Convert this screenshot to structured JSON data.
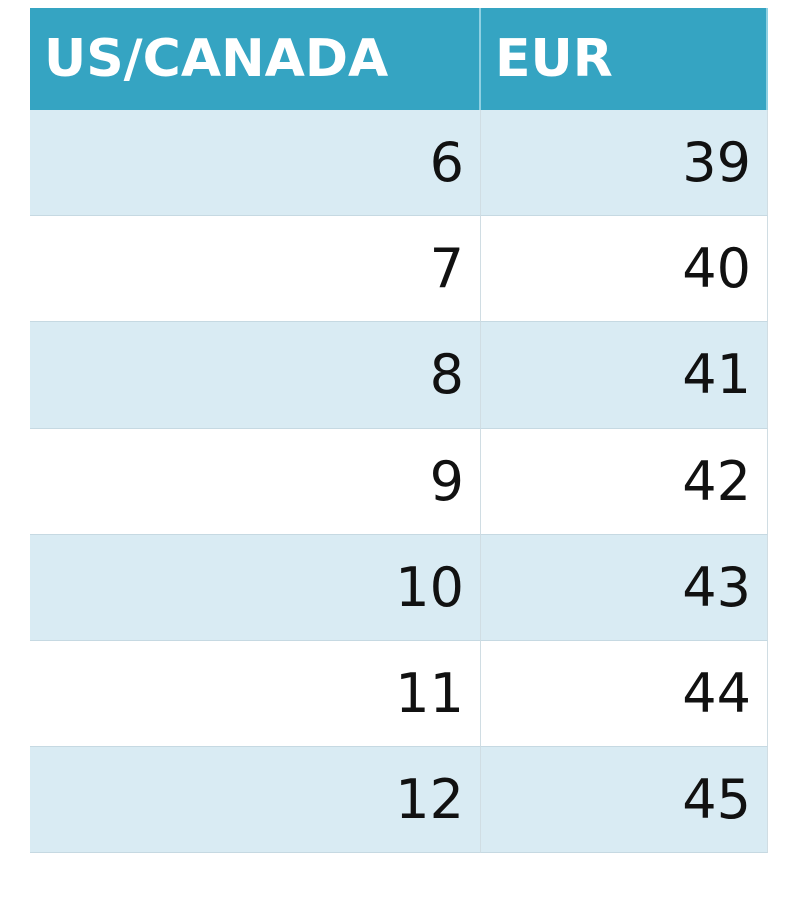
{
  "table": {
    "header": [
      "US/CANADA",
      "EUR"
    ],
    "rows": [
      [
        6,
        39
      ],
      [
        7,
        40
      ],
      [
        8,
        41
      ],
      [
        9,
        42
      ],
      [
        10,
        43
      ],
      [
        11,
        44
      ],
      [
        12,
        45
      ]
    ]
  }
}
